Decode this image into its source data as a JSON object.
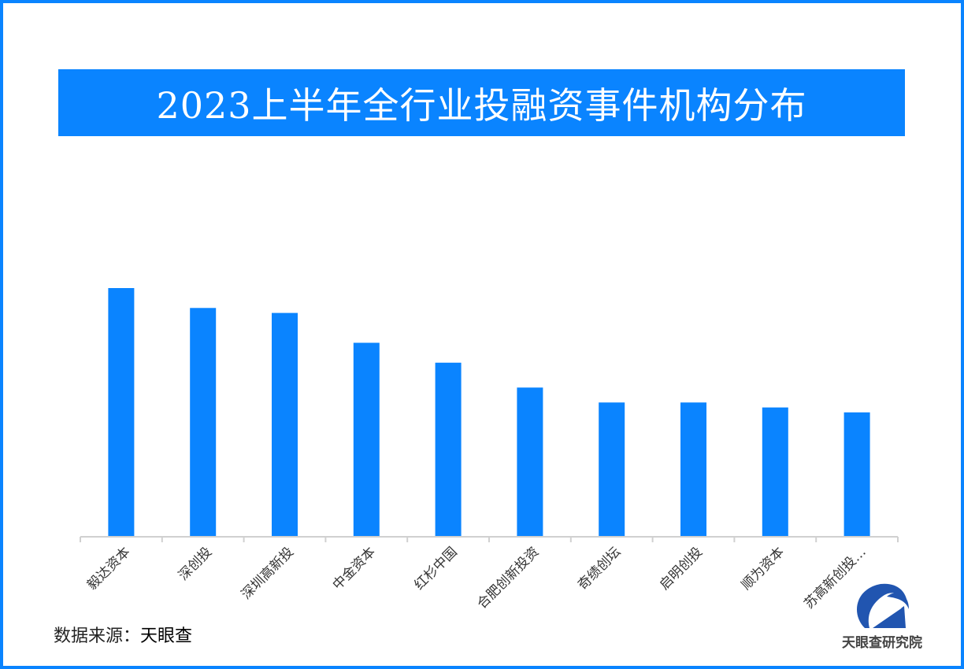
{
  "chart_data": {
    "type": "bar",
    "title": "2023上半年全行业投融资事件机构分布",
    "xlabel": "",
    "ylabel": "",
    "categories": [
      "毅达资本",
      "深创投",
      "深圳高新投",
      "中金资本",
      "红杉中国",
      "合肥创新投资",
      "奇绩创坛",
      "启明创投",
      "顺为资本",
      "苏高新创投…"
    ],
    "values": [
      100,
      92,
      90,
      78,
      70,
      60,
      54,
      54,
      52,
      50
    ],
    "value_note_units": "relative (no axis values shown)",
    "ylim": [
      0,
      100
    ],
    "grid": false,
    "bar_color": "#0a84ff"
  },
  "source": {
    "label": "数据来源：",
    "brand": "天眼查"
  },
  "logo": {
    "text": "天眼查研究院"
  },
  "colors": {
    "accent": "#0a84ff",
    "logo": "#2155b0"
  }
}
